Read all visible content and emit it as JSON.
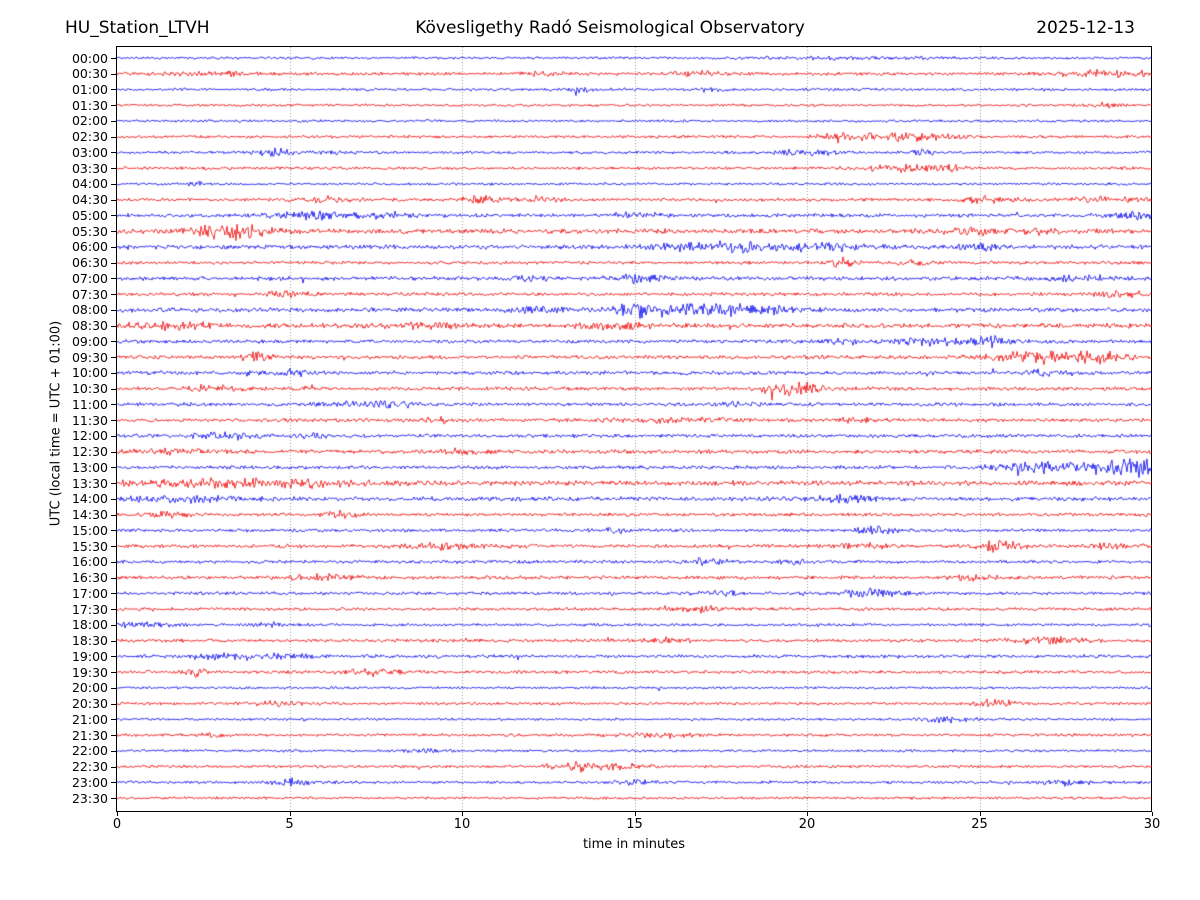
{
  "header": {
    "station": "HU_Station_LTVH",
    "observatory": "Kövesligethy Radó Seismological Observatory",
    "date": "2025-12-13"
  },
  "colors": {
    "blue": "#0000ee",
    "red": "#ee0000",
    "grid": "#999999",
    "axis": "#000000"
  },
  "chart_data": {
    "type": "line",
    "subtype": "helicorder-daily-seismogram",
    "title": "Kövesligethy Radó Seismological Observatory",
    "station_label": "HU_Station_LTVH",
    "date_label": "2025-12-13",
    "xlabel": "time in minutes",
    "ylabel": "UTC (local time = UTC + 01:00)",
    "xlim": [
      0,
      30
    ],
    "minutes_per_line": 30,
    "x_ticks": [
      "0",
      "5",
      "10",
      "15",
      "20",
      "25",
      "30"
    ],
    "grid_minutes": [
      5,
      10,
      15,
      20,
      25
    ],
    "grid_style": "dotted",
    "legend": "none",
    "rows": [
      {
        "time": "00:00",
        "color": "blue",
        "base": 0.7,
        "events": [
          {
            "m": 21,
            "w": 2,
            "a": 0.5
          }
        ]
      },
      {
        "time": "00:30",
        "color": "red",
        "base": 0.9,
        "events": [
          {
            "m": 3,
            "w": 1.2,
            "a": 0.8
          },
          {
            "m": 12.5,
            "w": 0.4,
            "a": 0.9
          },
          {
            "m": 16.8,
            "w": 0.4,
            "a": 1.1
          },
          {
            "m": 28.7,
            "w": 1.0,
            "a": 1.6
          }
        ]
      },
      {
        "time": "01:00",
        "color": "blue",
        "base": 0.8,
        "events": [
          {
            "m": 13.5,
            "w": 0.4,
            "a": 0.9
          },
          {
            "m": 17.2,
            "w": 0.3,
            "a": 1.1
          }
        ]
      },
      {
        "time": "01:30",
        "color": "red",
        "base": 0.7,
        "events": [
          {
            "m": 28.6,
            "w": 0.3,
            "a": 0.9
          }
        ]
      },
      {
        "time": "02:00",
        "color": "blue",
        "base": 0.7,
        "events": []
      },
      {
        "time": "02:30",
        "color": "red",
        "base": 0.8,
        "events": [
          {
            "m": 21,
            "w": 0.5,
            "a": 1.1
          },
          {
            "m": 22.8,
            "w": 1.0,
            "a": 2.0
          }
        ]
      },
      {
        "time": "03:00",
        "color": "blue",
        "base": 0.8,
        "events": [
          {
            "m": 4.7,
            "w": 0.5,
            "a": 2.0
          },
          {
            "m": 6.3,
            "w": 0.3,
            "a": 1.0
          },
          {
            "m": 20,
            "w": 0.6,
            "a": 1.8
          },
          {
            "m": 23.3,
            "w": 0.3,
            "a": 1.4
          }
        ]
      },
      {
        "time": "03:30",
        "color": "red",
        "base": 0.8,
        "events": [
          {
            "m": 22.7,
            "w": 0.8,
            "a": 1.8
          },
          {
            "m": 24.1,
            "w": 0.4,
            "a": 1.1
          }
        ]
      },
      {
        "time": "04:00",
        "color": "blue",
        "base": 0.7,
        "events": [
          {
            "m": 2.2,
            "w": 0.3,
            "a": 0.8
          }
        ]
      },
      {
        "time": "04:30",
        "color": "red",
        "base": 0.9,
        "events": [
          {
            "m": 6,
            "w": 0.7,
            "a": 1.4
          },
          {
            "m": 10.5,
            "w": 0.4,
            "a": 2.0
          },
          {
            "m": 12.3,
            "w": 0.4,
            "a": 1.5
          },
          {
            "m": 25.2,
            "w": 0.5,
            "a": 1.5
          },
          {
            "m": 28.5,
            "w": 0.8,
            "a": 1.1
          }
        ]
      },
      {
        "time": "05:00",
        "color": "blue",
        "base": 1.0,
        "events": [
          {
            "m": 5.6,
            "w": 0.8,
            "a": 1.8
          },
          {
            "m": 7.9,
            "w": 0.7,
            "a": 1.4
          },
          {
            "m": 15,
            "w": 0.5,
            "a": 1.1
          },
          {
            "m": 29.4,
            "w": 0.5,
            "a": 1.9
          }
        ]
      },
      {
        "time": "05:30",
        "color": "red",
        "base": 1.3,
        "events": [
          {
            "m": 2.6,
            "w": 0.4,
            "a": 1.8
          },
          {
            "m": 3.4,
            "w": 0.7,
            "a": 3.2
          },
          {
            "m": 24.8,
            "w": 0.6,
            "a": 1.9
          },
          {
            "m": 26.6,
            "w": 0.4,
            "a": 1.4
          }
        ]
      },
      {
        "time": "06:00",
        "color": "blue",
        "base": 1.2,
        "events": [
          {
            "m": 17.6,
            "w": 1.4,
            "a": 2.1
          },
          {
            "m": 20.6,
            "w": 0.8,
            "a": 1.7
          },
          {
            "m": 25,
            "w": 0.4,
            "a": 1.3
          }
        ]
      },
      {
        "time": "06:30",
        "color": "red",
        "base": 0.9,
        "events": [
          {
            "m": 21,
            "w": 0.25,
            "a": 2.4
          },
          {
            "m": 23.1,
            "w": 0.4,
            "a": 1.1
          }
        ]
      },
      {
        "time": "07:00",
        "color": "blue",
        "base": 1.1,
        "events": [
          {
            "m": 12,
            "w": 0.4,
            "a": 1.1
          },
          {
            "m": 15.1,
            "w": 0.6,
            "a": 1.7
          },
          {
            "m": 28,
            "w": 0.6,
            "a": 1.2
          }
        ]
      },
      {
        "time": "07:30",
        "color": "red",
        "base": 1.0,
        "events": [
          {
            "m": 5,
            "w": 0.4,
            "a": 1.7
          },
          {
            "m": 29.3,
            "w": 0.6,
            "a": 2.1
          }
        ]
      },
      {
        "time": "08:00",
        "color": "blue",
        "base": 1.2,
        "events": [
          {
            "m": 12.3,
            "w": 0.5,
            "a": 1.4
          },
          {
            "m": 15.1,
            "w": 0.6,
            "a": 2.6
          },
          {
            "m": 16.6,
            "w": 1.1,
            "a": 2.3
          },
          {
            "m": 18.6,
            "w": 0.8,
            "a": 1.7
          }
        ]
      },
      {
        "time": "08:30",
        "color": "red",
        "base": 1.3,
        "events": [
          {
            "m": 1.5,
            "w": 1.0,
            "a": 1.4
          },
          {
            "m": 9,
            "w": 1.0,
            "a": 1.1
          },
          {
            "m": 14.5,
            "w": 1.0,
            "a": 1.2
          }
        ]
      },
      {
        "time": "09:00",
        "color": "blue",
        "base": 1.0,
        "events": [
          {
            "m": 21,
            "w": 0.5,
            "a": 1.2
          },
          {
            "m": 23.7,
            "w": 0.8,
            "a": 1.9
          },
          {
            "m": 25.3,
            "w": 0.4,
            "a": 2.1
          }
        ]
      },
      {
        "time": "09:30",
        "color": "red",
        "base": 1.1,
        "events": [
          {
            "m": 4,
            "w": 0.35,
            "a": 2.1
          },
          {
            "m": 26.9,
            "w": 1.1,
            "a": 2.9
          },
          {
            "m": 28.6,
            "w": 0.5,
            "a": 1.7
          }
        ]
      },
      {
        "time": "10:00",
        "color": "blue",
        "base": 1.1,
        "events": [
          {
            "m": 5,
            "w": 0.5,
            "a": 1.2
          },
          {
            "m": 27,
            "w": 0.5,
            "a": 1.2
          }
        ]
      },
      {
        "time": "10:30",
        "color": "red",
        "base": 1.0,
        "events": [
          {
            "m": 2.7,
            "w": 0.6,
            "a": 1.4
          },
          {
            "m": 19.5,
            "w": 0.65,
            "a": 3.1
          }
        ]
      },
      {
        "time": "11:00",
        "color": "blue",
        "base": 1.0,
        "events": [
          {
            "m": 7.5,
            "w": 0.8,
            "a": 1.7
          },
          {
            "m": 18,
            "w": 0.4,
            "a": 1.2
          }
        ]
      },
      {
        "time": "11:30",
        "color": "red",
        "base": 1.0,
        "events": [
          {
            "m": 9.2,
            "w": 0.25,
            "a": 2.4
          },
          {
            "m": 16,
            "w": 1.4,
            "a": 1.1
          },
          {
            "m": 21.5,
            "w": 0.4,
            "a": 1.4
          }
        ]
      },
      {
        "time": "12:00",
        "color": "blue",
        "base": 1.0,
        "events": [
          {
            "m": 3,
            "w": 0.7,
            "a": 1.7
          },
          {
            "m": 5.6,
            "w": 0.3,
            "a": 1.1
          }
        ]
      },
      {
        "time": "12:30",
        "color": "red",
        "base": 1.1,
        "events": [
          {
            "m": 1.5,
            "w": 0.8,
            "a": 1.2
          },
          {
            "m": 10,
            "w": 0.5,
            "a": 1.1
          }
        ]
      },
      {
        "time": "13:00",
        "color": "blue",
        "base": 1.0,
        "events": [
          {
            "m": 26.5,
            "w": 0.8,
            "a": 1.9
          },
          {
            "m": 28.6,
            "w": 1.1,
            "a": 2.9
          },
          {
            "m": 29.7,
            "w": 0.35,
            "a": 3.4
          }
        ]
      },
      {
        "time": "13:30",
        "color": "red",
        "base": 1.4,
        "events": [
          {
            "m": 2.6,
            "w": 1.4,
            "a": 1.7
          },
          {
            "m": 5.5,
            "w": 1.0,
            "a": 1.4
          }
        ]
      },
      {
        "time": "14:00",
        "color": "blue",
        "base": 1.2,
        "events": [
          {
            "m": 2,
            "w": 1.4,
            "a": 1.2
          },
          {
            "m": 21,
            "w": 0.6,
            "a": 1.4
          }
        ]
      },
      {
        "time": "14:30",
        "color": "red",
        "base": 0.9,
        "events": [
          {
            "m": 1.5,
            "w": 0.5,
            "a": 1.1
          },
          {
            "m": 6.5,
            "w": 0.35,
            "a": 1.7
          }
        ]
      },
      {
        "time": "15:00",
        "color": "blue",
        "base": 0.9,
        "events": [
          {
            "m": 14.5,
            "w": 0.4,
            "a": 1.1
          },
          {
            "m": 22,
            "w": 0.5,
            "a": 1.7
          }
        ]
      },
      {
        "time": "15:30",
        "color": "red",
        "base": 1.0,
        "events": [
          {
            "m": 9.5,
            "w": 0.8,
            "a": 1.4
          },
          {
            "m": 21.6,
            "w": 0.5,
            "a": 1.7
          },
          {
            "m": 25.6,
            "w": 0.5,
            "a": 2.4
          },
          {
            "m": 28.8,
            "w": 0.5,
            "a": 1.4
          }
        ]
      },
      {
        "time": "16:00",
        "color": "blue",
        "base": 0.9,
        "events": [
          {
            "m": 17,
            "w": 0.5,
            "a": 1.7
          },
          {
            "m": 19.6,
            "w": 0.3,
            "a": 1.1
          }
        ]
      },
      {
        "time": "16:30",
        "color": "red",
        "base": 1.0,
        "events": [
          {
            "m": 5.9,
            "w": 0.6,
            "a": 1.4
          },
          {
            "m": 24.8,
            "w": 0.4,
            "a": 1.2
          }
        ]
      },
      {
        "time": "17:00",
        "color": "blue",
        "base": 0.9,
        "events": [
          {
            "m": 17.5,
            "w": 0.4,
            "a": 1.1
          },
          {
            "m": 21.9,
            "w": 0.6,
            "a": 2.1
          }
        ]
      },
      {
        "time": "17:30",
        "color": "red",
        "base": 0.9,
        "events": [
          {
            "m": 17,
            "w": 0.5,
            "a": 1.4
          }
        ]
      },
      {
        "time": "18:00",
        "color": "blue",
        "base": 0.8,
        "events": [
          {
            "m": 0.8,
            "w": 0.6,
            "a": 1.2
          },
          {
            "m": 4.5,
            "w": 0.3,
            "a": 0.9
          }
        ]
      },
      {
        "time": "18:30",
        "color": "red",
        "base": 0.9,
        "events": [
          {
            "m": 15.8,
            "w": 0.5,
            "a": 1.2
          },
          {
            "m": 27,
            "w": 0.8,
            "a": 1.4
          }
        ]
      },
      {
        "time": "19:00",
        "color": "blue",
        "base": 0.9,
        "events": [
          {
            "m": 3.2,
            "w": 0.7,
            "a": 2.1
          },
          {
            "m": 5,
            "w": 0.5,
            "a": 1.4
          }
        ]
      },
      {
        "time": "19:30",
        "color": "red",
        "base": 0.9,
        "events": [
          {
            "m": 2.3,
            "w": 0.2,
            "a": 1.9
          },
          {
            "m": 7.5,
            "w": 0.6,
            "a": 1.7
          }
        ]
      },
      {
        "time": "20:00",
        "color": "blue",
        "base": 0.7,
        "events": []
      },
      {
        "time": "20:30",
        "color": "red",
        "base": 0.8,
        "events": [
          {
            "m": 4.8,
            "w": 0.6,
            "a": 1.1
          },
          {
            "m": 25.5,
            "w": 0.4,
            "a": 2.1
          }
        ]
      },
      {
        "time": "21:00",
        "color": "blue",
        "base": 0.7,
        "events": [
          {
            "m": 24,
            "w": 0.5,
            "a": 1.4
          }
        ]
      },
      {
        "time": "21:30",
        "color": "red",
        "base": 0.8,
        "events": [
          {
            "m": 2.7,
            "w": 0.3,
            "a": 1.1
          },
          {
            "m": 15.6,
            "w": 0.8,
            "a": 1.2
          }
        ]
      },
      {
        "time": "22:00",
        "color": "blue",
        "base": 0.7,
        "events": [
          {
            "m": 9,
            "w": 0.4,
            "a": 0.9
          }
        ]
      },
      {
        "time": "22:30",
        "color": "red",
        "base": 0.8,
        "events": [
          {
            "m": 13.3,
            "w": 0.5,
            "a": 1.7
          },
          {
            "m": 14.4,
            "w": 0.6,
            "a": 1.4
          }
        ]
      },
      {
        "time": "23:00",
        "color": "blue",
        "base": 0.8,
        "events": [
          {
            "m": 5,
            "w": 0.4,
            "a": 1.7
          },
          {
            "m": 15,
            "w": 0.5,
            "a": 1.1
          },
          {
            "m": 27.5,
            "w": 0.5,
            "a": 1.4
          }
        ]
      },
      {
        "time": "23:30",
        "color": "red",
        "base": 0.7,
        "events": []
      }
    ]
  }
}
